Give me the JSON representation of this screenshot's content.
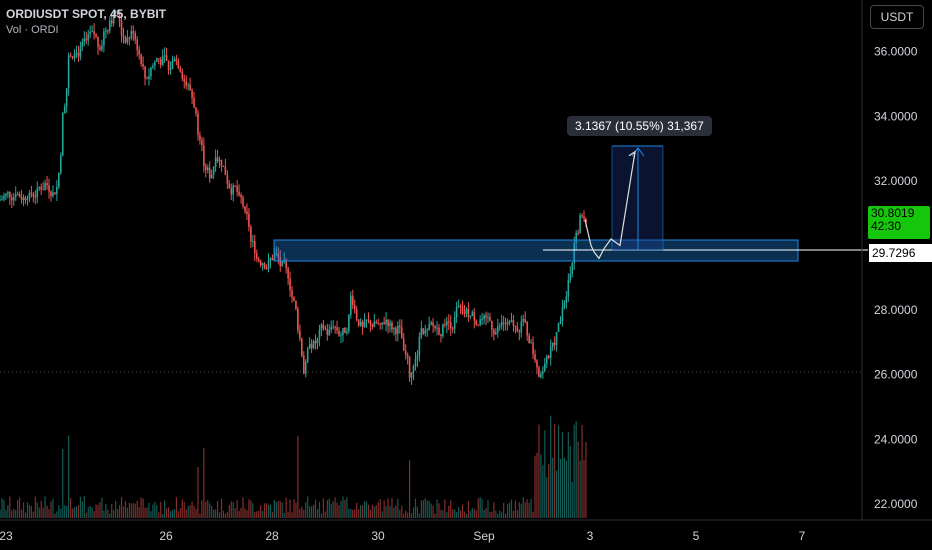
{
  "legend": {
    "symbol": "ORDIUSDT SPOT, 45, BYBIT",
    "volume": "Vol · ORDI"
  },
  "currency": "USDT",
  "price_scale": [
    "36.0000",
    "34.0000",
    "32.0000",
    "28.0000",
    "26.0000",
    "24.0000",
    "22.0000"
  ],
  "price_scale_values": [
    36,
    34,
    32,
    28,
    26,
    24,
    22
  ],
  "time_scale": [
    "23",
    "26",
    "28",
    "30",
    "Sep",
    "3",
    "5",
    "7"
  ],
  "current_price": {
    "value": "30.8019",
    "countdown": "42:30"
  },
  "line_price": "29.7296",
  "measure_label": "3.1367 (10.55%) 31,367",
  "colors": {
    "up": "#26a69a",
    "down": "#ef5350",
    "zone": "#1e88e5",
    "price_tag": "#16c60c",
    "background": "#000000"
  },
  "chart_data": {
    "type": "candlestick",
    "price_range": [
      21.5,
      37.6
    ],
    "closes": [
      31.5,
      31.6,
      31.7,
      31.5,
      31.6,
      31.6,
      31.8,
      31.9,
      31.7,
      31.8,
      34.0,
      35.8,
      36.1,
      36.0,
      36.3,
      36.5,
      36.2,
      36.6,
      37.0,
      37.3,
      36.6,
      36.4,
      36.7,
      35.9,
      35.2,
      35.5,
      35.8,
      35.7,
      35.4,
      35.9,
      35.5,
      35.0,
      34.6,
      33.6,
      32.6,
      32.2,
      32.9,
      32.6,
      32.0,
      31.7,
      31.4,
      30.9,
      30.1,
      29.6,
      29.5,
      29.4,
      29.7,
      29.4,
      29.2,
      28.4,
      27.5,
      26.1,
      27.1,
      27.0,
      27.4,
      27.3,
      27.6,
      27.3,
      27.4,
      28.4,
      27.8,
      27.4,
      27.6,
      27.5,
      27.4,
      27.7,
      27.5,
      27.4,
      26.6,
      26.0,
      26.4,
      27.6,
      27.3,
      27.5,
      27.4,
      27.7,
      27.6,
      28.0,
      27.8,
      27.9,
      27.8,
      27.7,
      27.6,
      27.5,
      27.4,
      27.6,
      27.5,
      27.4,
      27.6,
      27.3,
      26.7,
      26.1,
      26.4,
      26.7,
      27.2,
      28.2,
      29.1,
      30.1,
      30.8,
      30.8
    ],
    "zone": {
      "top": 29.85,
      "bottom": 29.15
    },
    "projection": [
      30.8,
      30.0,
      29.8,
      29.6,
      29.9,
      30.2,
      30.0,
      32.9
    ]
  }
}
